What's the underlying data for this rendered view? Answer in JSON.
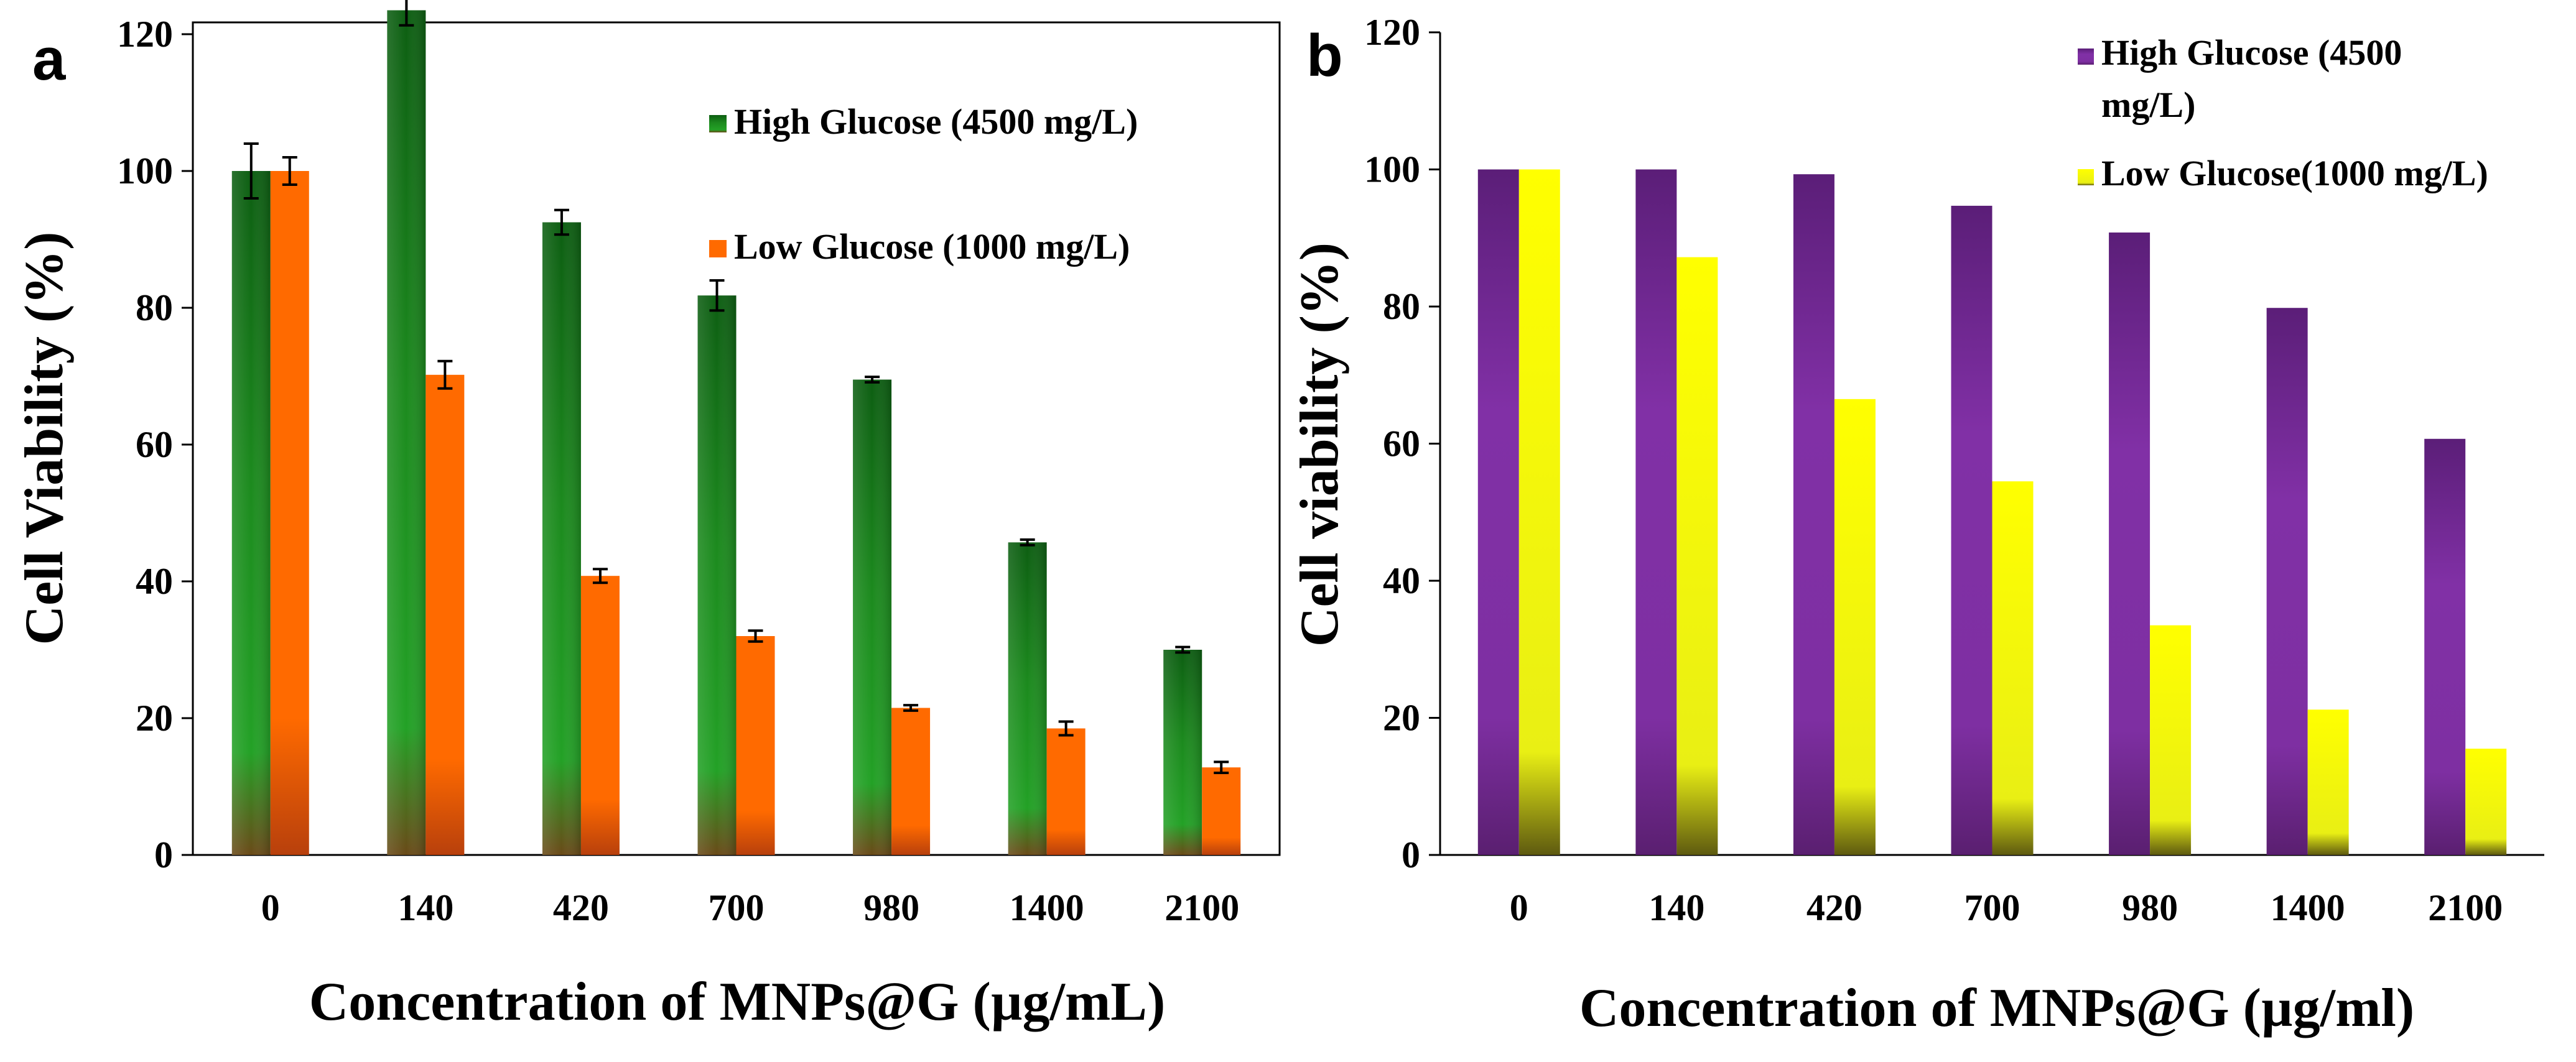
{
  "chart_data": [
    {
      "type": "bar",
      "panel_label": "a",
      "categories": [
        "0",
        "140",
        "420",
        "700",
        "980",
        "1400",
        "2100"
      ],
      "series": [
        {
          "name": "High Glucose (4500 mg/L)",
          "color": "#1e8a1e",
          "values": [
            100,
            123.5,
            92.5,
            81.8,
            69.5,
            45.7,
            30.0
          ],
          "errors": [
            4.0,
            2.2,
            1.8,
            2.2,
            0.4,
            0.4,
            0.4
          ]
        },
        {
          "name": "Low Glucose (1000 mg/L)",
          "color": "#ff6a00",
          "values": [
            100,
            70.2,
            40.8,
            32.0,
            21.5,
            18.5,
            12.8
          ],
          "errors": [
            2.0,
            2.0,
            1.0,
            0.8,
            0.4,
            1.0,
            0.8
          ]
        }
      ],
      "xlabel": "Concentration of MNPs@G (µg/mL)",
      "ylabel": "Cell Viability (%)",
      "ylim": [
        0,
        120
      ],
      "yticks": [
        "0",
        "20",
        "40",
        "60",
        "80",
        "100",
        "120"
      ],
      "legend_position": "top-right",
      "grid": false
    },
    {
      "type": "bar",
      "panel_label": "b",
      "categories": [
        "0",
        "140",
        "420",
        "700",
        "980",
        "1400",
        "2100"
      ],
      "series": [
        {
          "name": "High Glucose (4500 mg/L)",
          "legend_lines": [
            "High Glucose (4500",
            "mg/L)"
          ],
          "color": "#7a2a9a",
          "values": [
            100,
            100,
            99.3,
            94.7,
            90.8,
            79.8,
            60.7
          ]
        },
        {
          "name": "Low Glucose(1000 mg/L)",
          "legend_lines": [
            "Low Glucose(1000 mg/L)"
          ],
          "color": "#f4f400",
          "values": [
            100,
            87.2,
            66.5,
            54.5,
            33.5,
            21.2,
            15.5
          ]
        }
      ],
      "xlabel": "Concentration of MNPs@G (µg/ml)",
      "ylabel": "Cell viability (%)",
      "ylim": [
        0,
        120
      ],
      "yticks": [
        "0",
        "20",
        "40",
        "60",
        "80",
        "100",
        "120"
      ],
      "legend_position": "top-right",
      "grid": false
    }
  ]
}
